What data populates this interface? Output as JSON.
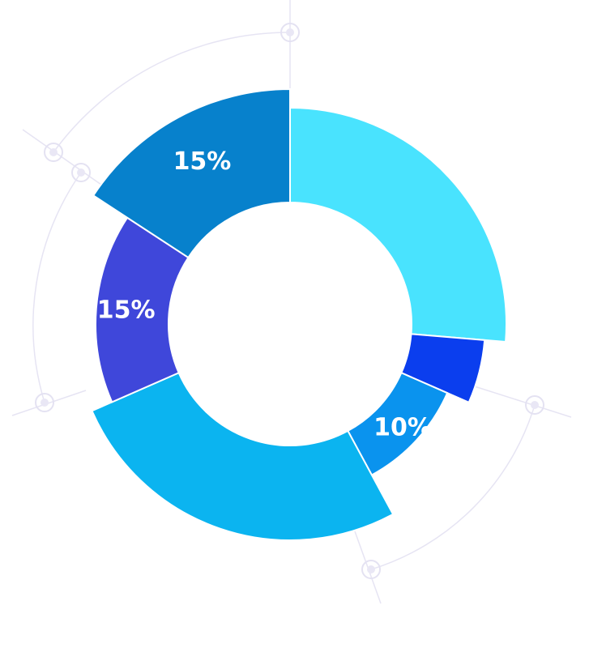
{
  "chart_data": {
    "type": "pie",
    "variant": "donut",
    "title": "",
    "legend": "none",
    "slices": [
      {
        "value": 25,
        "label": "",
        "color": "#49E3FE"
      },
      {
        "value": 5,
        "label": "",
        "color": "#0B3EEE"
      },
      {
        "value": 10,
        "label": "10%",
        "color": "#0A93EE"
      },
      {
        "value": 25,
        "label": "",
        "color": "#0BB4F0"
      },
      {
        "value": 15,
        "label": "15%",
        "color": "#3F47DA"
      },
      {
        "value": 15,
        "label": "15%",
        "color": "#0781CC"
      }
    ]
  }
}
